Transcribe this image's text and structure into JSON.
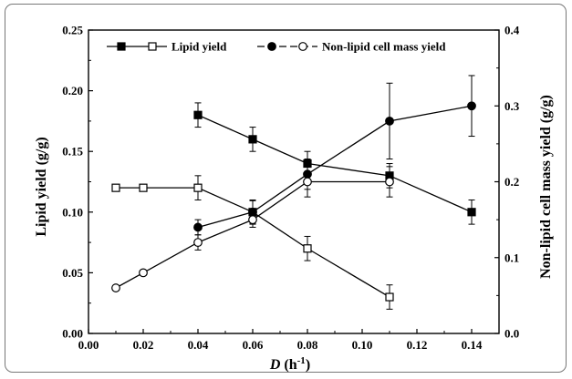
{
  "chart_data": {
    "type": "line",
    "xlabel_var": "D",
    "xlabel_unit": " (h",
    "xlabel_exp": "-1",
    "xlabel_close": ")",
    "ylabel_left": "Lipid yield (g/g)",
    "ylabel_right": "Non-lipid cell mass yield (g/g)",
    "xlim": [
      0.0,
      0.15
    ],
    "ylim_left": [
      0.0,
      0.25
    ],
    "ylim_right": [
      0.0,
      0.4
    ],
    "x_ticks": [
      "0.00",
      "0.02",
      "0.04",
      "0.06",
      "0.08",
      "0.10",
      "0.12",
      "0.14"
    ],
    "y_left_ticks": [
      "0.00",
      "0.05",
      "0.10",
      "0.15",
      "0.20",
      "0.25"
    ],
    "y_right_ticks": [
      "0.0",
      "0.1",
      "0.2",
      "0.3",
      "0.4"
    ],
    "legend_position": "top",
    "series": [
      {
        "name": "Lipid yield",
        "axis": "left",
        "marker": "square-filled",
        "x": [
          0.04,
          0.06,
          0.08,
          0.11,
          0.14
        ],
        "y": [
          0.18,
          0.16,
          0.14,
          0.13,
          0.1
        ],
        "err": [
          0.01,
          0.01,
          0.01,
          0.01,
          0.01
        ]
      },
      {
        "name": "",
        "axis": "left",
        "marker": "square-open",
        "x": [
          0.01,
          0.02,
          0.04,
          0.06,
          0.08,
          0.11
        ],
        "y": [
          0.12,
          0.12,
          0.12,
          0.1,
          0.07,
          0.03
        ],
        "err": [
          0,
          0,
          0.01,
          0.01,
          0.01,
          0.01
        ]
      },
      {
        "name": "Non-lipid cell mass yield",
        "axis": "right",
        "marker": "circle-filled",
        "x": [
          0.04,
          0.06,
          0.08,
          0.11,
          0.14
        ],
        "y": [
          0.14,
          0.16,
          0.21,
          0.28,
          0.3
        ],
        "err": [
          0.01,
          0.015,
          0.02,
          0.05,
          0.04
        ]
      },
      {
        "name": "",
        "axis": "right",
        "marker": "circle-open",
        "x": [
          0.01,
          0.02,
          0.04,
          0.06,
          0.08,
          0.11
        ],
        "y": [
          0.06,
          0.08,
          0.12,
          0.15,
          0.2,
          0.2
        ],
        "err": [
          0,
          0,
          0.01,
          0.01,
          0.02,
          0.02
        ]
      }
    ]
  }
}
